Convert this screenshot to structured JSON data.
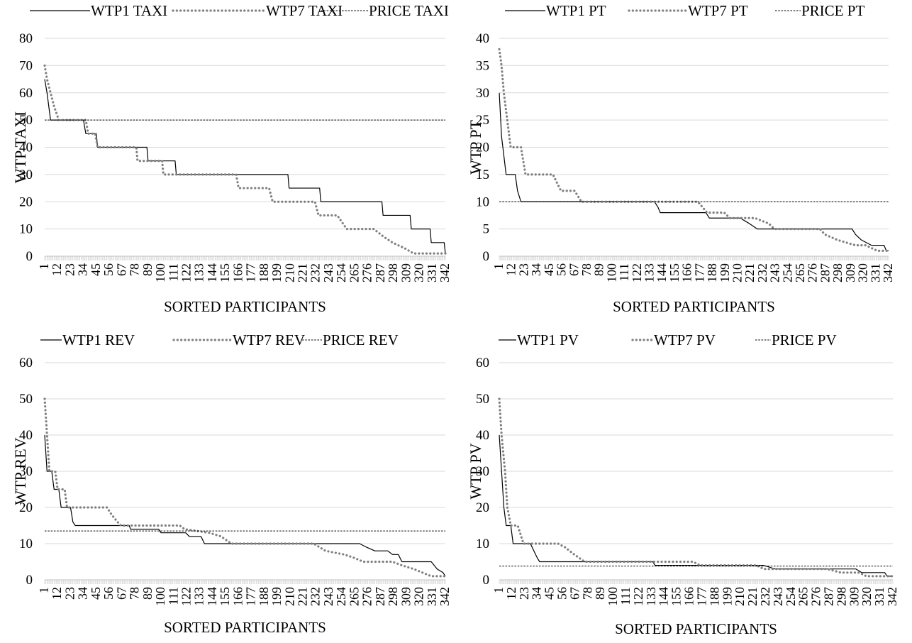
{
  "chart_data": [
    {
      "type": "line",
      "title": "",
      "xlabel": "SORTED PARTICIPANTS",
      "ylabel": "WTP TAXI",
      "ylim": [
        0,
        80
      ],
      "yticks": [
        0,
        10,
        20,
        30,
        40,
        50,
        60,
        70,
        80
      ],
      "xlim": [
        1,
        342
      ],
      "grid": true,
      "legend_position": "top",
      "x_tick_labels": [
        "1",
        "12",
        "23",
        "34",
        "45",
        "56",
        "67",
        "78",
        "89",
        "100",
        "111",
        "122",
        "133",
        "144",
        "155",
        "166",
        "177",
        "188",
        "199",
        "210",
        "221",
        "232",
        "243",
        "254",
        "265",
        "276",
        "287",
        "298",
        "309",
        "320",
        "331",
        "342"
      ],
      "series": [
        {
          "name": "WTP1 TAXI",
          "style": "solid",
          "color": "#000000",
          "points": [
            [
              1,
              65
            ],
            [
              3,
              60
            ],
            [
              6,
              50
            ],
            [
              34,
              50
            ],
            [
              36,
              45
            ],
            [
              45,
              45
            ],
            [
              46,
              40
            ],
            [
              88,
              40
            ],
            [
              89,
              35
            ],
            [
              112,
              35
            ],
            [
              113,
              30
            ],
            [
              208,
              30
            ],
            [
              209,
              25
            ],
            [
              235,
              25
            ],
            [
              236,
              20
            ],
            [
              288,
              20
            ],
            [
              289,
              15
            ],
            [
              312,
              15
            ],
            [
              313,
              10
            ],
            [
              329,
              10
            ],
            [
              330,
              5
            ],
            [
              341,
              5
            ],
            [
              342,
              1
            ]
          ]
        },
        {
          "name": "WTP7 TAXI",
          "style": "dotted",
          "color": "#808080",
          "points": [
            [
              1,
              70
            ],
            [
              3,
              65
            ],
            [
              6,
              60
            ],
            [
              9,
              55
            ],
            [
              13,
              50
            ],
            [
              36,
              50
            ],
            [
              38,
              45
            ],
            [
              44,
              45
            ],
            [
              46,
              40
            ],
            [
              79,
              40
            ],
            [
              80,
              35
            ],
            [
              101,
              35
            ],
            [
              102,
              30
            ],
            [
              164,
              30
            ],
            [
              166,
              25
            ],
            [
              192,
              25
            ],
            [
              195,
              20
            ],
            [
              231,
              20
            ],
            [
              234,
              15
            ],
            [
              250,
              15
            ],
            [
              258,
              10
            ],
            [
              281,
              10
            ],
            [
              290,
              7
            ],
            [
              297,
              5
            ],
            [
              307,
              3
            ],
            [
              315,
              1
            ],
            [
              342,
              1
            ]
          ]
        },
        {
          "name": "PRICE TAXI",
          "style": "dashed",
          "color": "#000000",
          "points": [
            [
              1,
              50
            ],
            [
              342,
              50
            ]
          ]
        }
      ]
    },
    {
      "type": "line",
      "title": "",
      "xlabel": "SORTED PARTICIPANTS",
      "ylabel": "WTP PT",
      "ylim": [
        0,
        40
      ],
      "yticks": [
        0,
        5,
        10,
        15,
        20,
        25,
        30,
        35,
        40
      ],
      "xlim": [
        1,
        342
      ],
      "grid": true,
      "legend_position": "top",
      "x_tick_labels": [
        "1",
        "12",
        "23",
        "34",
        "45",
        "56",
        "67",
        "78",
        "89",
        "100",
        "111",
        "122",
        "133",
        "144",
        "155",
        "166",
        "177",
        "188",
        "199",
        "210",
        "221",
        "232",
        "243",
        "254",
        "265",
        "276",
        "287",
        "298",
        "309",
        "320",
        "331",
        "342"
      ],
      "series": [
        {
          "name": "WTP1 PT",
          "style": "solid",
          "color": "#000000",
          "points": [
            [
              1,
              30
            ],
            [
              3,
              22
            ],
            [
              7,
              15
            ],
            [
              15,
              15
            ],
            [
              17,
              12
            ],
            [
              20,
              10
            ],
            [
              137,
              10
            ],
            [
              140,
              9
            ],
            [
              142,
              8
            ],
            [
              182,
              8
            ],
            [
              185,
              7
            ],
            [
              212,
              7
            ],
            [
              220,
              6
            ],
            [
              227,
              5
            ],
            [
              310,
              5
            ],
            [
              313,
              4
            ],
            [
              318,
              3
            ],
            [
              327,
              2
            ],
            [
              338,
              2
            ],
            [
              340,
              1
            ],
            [
              342,
              1
            ]
          ]
        },
        {
          "name": "WTP7 PT",
          "style": "dotted",
          "color": "#808080",
          "points": [
            [
              1,
              38
            ],
            [
              3,
              35
            ],
            [
              5,
              30
            ],
            [
              8,
              25
            ],
            [
              11,
              20
            ],
            [
              20,
              20
            ],
            [
              24,
              15
            ],
            [
              48,
              15
            ],
            [
              55,
              12
            ],
            [
              67,
              12
            ],
            [
              73,
              10
            ],
            [
              175,
              10
            ],
            [
              183,
              8
            ],
            [
              198,
              8
            ],
            [
              203,
              7
            ],
            [
              225,
              7
            ],
            [
              237,
              6
            ],
            [
              242,
              5
            ],
            [
              282,
              5
            ],
            [
              286,
              4
            ],
            [
              297,
              3
            ],
            [
              313,
              2
            ],
            [
              322,
              2
            ],
            [
              332,
              1
            ],
            [
              342,
              1
            ]
          ]
        },
        {
          "name": "PRICE PT",
          "style": "dashed",
          "color": "#000000",
          "points": [
            [
              1,
              10
            ],
            [
              342,
              10
            ]
          ]
        }
      ]
    },
    {
      "type": "line",
      "title": "",
      "xlabel": "SORTED PARTICIPANTS",
      "ylabel": "WTP REV",
      "ylim": [
        0,
        60
      ],
      "yticks": [
        0,
        10,
        20,
        30,
        40,
        50,
        60
      ],
      "xlim": [
        1,
        342
      ],
      "grid": true,
      "legend_position": "top",
      "x_tick_labels": [
        "1",
        "12",
        "23",
        "34",
        "45",
        "56",
        "67",
        "78",
        "89",
        "100",
        "111",
        "122",
        "133",
        "144",
        "155",
        "166",
        "177",
        "188",
        "199",
        "210",
        "221",
        "232",
        "243",
        "254",
        "265",
        "276",
        "287",
        "298",
        "309",
        "320",
        "331",
        "342"
      ],
      "series": [
        {
          "name": "WTP1 REV",
          "style": "solid",
          "color": "#000000",
          "points": [
            [
              1,
              40
            ],
            [
              3,
              30
            ],
            [
              7,
              30
            ],
            [
              9,
              25
            ],
            [
              13,
              25
            ],
            [
              15,
              20
            ],
            [
              23,
              20
            ],
            [
              25,
              16
            ],
            [
              27,
              15
            ],
            [
              73,
              15
            ],
            [
              74,
              14
            ],
            [
              98,
              14
            ],
            [
              100,
              13
            ],
            [
              121,
              13
            ],
            [
              124,
              12
            ],
            [
              134,
              12
            ],
            [
              137,
              10
            ],
            [
              269,
              10
            ],
            [
              275,
              9
            ],
            [
              282,
              8
            ],
            [
              293,
              8
            ],
            [
              297,
              7
            ],
            [
              302,
              7
            ],
            [
              305,
              5
            ],
            [
              330,
              5
            ],
            [
              335,
              3
            ],
            [
              340,
              2
            ],
            [
              342,
              1
            ]
          ]
        },
        {
          "name": "WTP7 REV",
          "style": "dotted",
          "color": "#808080",
          "points": [
            [
              1,
              50
            ],
            [
              3,
              40
            ],
            [
              5,
              30
            ],
            [
              10,
              30
            ],
            [
              12,
              25
            ],
            [
              18,
              25
            ],
            [
              20,
              20
            ],
            [
              54,
              20
            ],
            [
              58,
              18
            ],
            [
              63,
              16
            ],
            [
              66,
              15
            ],
            [
              116,
              15
            ],
            [
              120,
              14
            ],
            [
              141,
              13
            ],
            [
              151,
              12
            ],
            [
              160,
              10
            ],
            [
              230,
              10
            ],
            [
              240,
              8
            ],
            [
              256,
              7
            ],
            [
              265,
              6
            ],
            [
              272,
              5
            ],
            [
              297,
              5
            ],
            [
              305,
              4
            ],
            [
              315,
              3
            ],
            [
              330,
              1
            ],
            [
              342,
              1
            ]
          ]
        },
        {
          "name": "PRICE REV",
          "style": "dashed",
          "color": "#000000",
          "points": [
            [
              1,
              13.5
            ],
            [
              342,
              13.5
            ]
          ]
        }
      ]
    },
    {
      "type": "line",
      "title": "",
      "xlabel": "SORTED PARTICIPANTS",
      "ylabel": "WTP PV",
      "ylim": [
        0,
        60
      ],
      "yticks": [
        0,
        10,
        20,
        30,
        40,
        50,
        60
      ],
      "xlim": [
        1,
        342
      ],
      "grid": true,
      "legend_position": "top",
      "x_tick_labels": [
        "1",
        "12",
        "23",
        "34",
        "45",
        "56",
        "67",
        "78",
        "89",
        "100",
        "111",
        "122",
        "133",
        "144",
        "155",
        "166",
        "177",
        "188",
        "199",
        "210",
        "221",
        "232",
        "243",
        "254",
        "265",
        "276",
        "287",
        "298",
        "309",
        "320",
        "331",
        "342"
      ],
      "series": [
        {
          "name": "WTP1 PV",
          "style": "solid",
          "color": "#000000",
          "points": [
            [
              1,
              40
            ],
            [
              3,
              30
            ],
            [
              5,
              20
            ],
            [
              7,
              15
            ],
            [
              11,
              15
            ],
            [
              13,
              10
            ],
            [
              28,
              10
            ],
            [
              31,
              8
            ],
            [
              34,
              6
            ],
            [
              36,
              5
            ],
            [
              134,
              5
            ],
            [
              136,
              4
            ],
            [
              230,
              4
            ],
            [
              240,
              3
            ],
            [
              310,
              3
            ],
            [
              315,
              2
            ],
            [
              335,
              2
            ],
            [
              337,
              1
            ],
            [
              342,
              1
            ]
          ]
        },
        {
          "name": "WTP7 PV",
          "style": "dotted",
          "color": "#808080",
          "points": [
            [
              1,
              50
            ],
            [
              3,
              40
            ],
            [
              6,
              30
            ],
            [
              8,
              20
            ],
            [
              11,
              15
            ],
            [
              17,
              15
            ],
            [
              20,
              12
            ],
            [
              22,
              10
            ],
            [
              41,
              10
            ],
            [
              52,
              10
            ],
            [
              58,
              9
            ],
            [
              66,
              7
            ],
            [
              75,
              5
            ],
            [
              130,
              5
            ],
            [
              135,
              5
            ],
            [
              169,
              5
            ],
            [
              175,
              4
            ],
            [
              224,
              4
            ],
            [
              230,
              3
            ],
            [
              285,
              3
            ],
            [
              297,
              2
            ],
            [
              313,
              2
            ],
            [
              319,
              1
            ],
            [
              342,
              1
            ]
          ]
        },
        {
          "name": "PRICE PV",
          "style": "dashed",
          "color": "#000000",
          "points": [
            [
              1,
              3.8
            ],
            [
              342,
              3.8
            ]
          ]
        }
      ]
    }
  ]
}
